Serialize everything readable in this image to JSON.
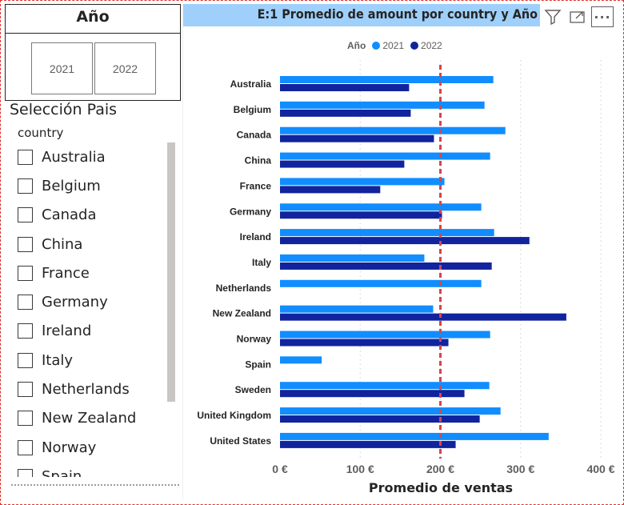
{
  "year_slicer": {
    "title": "Año",
    "options": [
      "2021",
      "2022"
    ]
  },
  "country_slicer": {
    "title": "Selección Pais",
    "header": "country",
    "items": [
      "Australia",
      "Belgium",
      "Canada",
      "China",
      "France",
      "Germany",
      "Ireland",
      "Italy",
      "Netherlands",
      "New Zealand",
      "Norway",
      "Spain"
    ]
  },
  "visual": {
    "title": "E:1 Promedio de amount por country y Año",
    "icons": [
      "filter-icon",
      "focus-mode-icon",
      "more-options-icon"
    ],
    "more_label": "···"
  },
  "colors": {
    "series_2021": "#118DFF",
    "series_2022": "#12239E",
    "reference_line": "#D64550",
    "title_bar": "#9FD0FB"
  },
  "chart_data": {
    "type": "bar",
    "orientation": "horizontal",
    "title": "E:1 Promedio de amount por country y Año",
    "xlabel": "Promedio de ventas",
    "ylabel": "",
    "legend_title": "Año",
    "legend_position": "top-center",
    "categories": [
      "Australia",
      "Belgium",
      "Canada",
      "China",
      "France",
      "Germany",
      "Ireland",
      "Italy",
      "Netherlands",
      "New Zealand",
      "Norway",
      "Spain",
      "Sweden",
      "United Kingdom",
      "United States"
    ],
    "series": [
      {
        "name": "2021",
        "values": [
          266,
          255,
          281,
          262,
          205,
          251,
          267,
          180,
          251,
          191,
          262,
          52,
          261,
          275,
          335
        ]
      },
      {
        "name": "2022",
        "values": [
          161,
          163,
          192,
          155,
          125,
          202,
          311,
          264,
          null,
          357,
          210,
          null,
          230,
          249,
          219
        ]
      }
    ],
    "x_ticks": [
      "0 €",
      "100 €",
      "200 €",
      "300 €",
      "400 €"
    ],
    "xlim": [
      0,
      400
    ],
    "reference_line": 200,
    "grid": "vertical-dotted"
  }
}
